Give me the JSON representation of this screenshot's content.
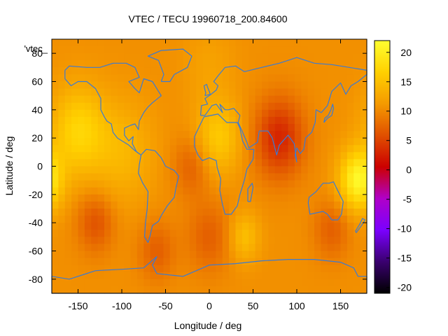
{
  "chart_data": {
    "type": "heatmap",
    "title": "VTEC / TECU 19960718_200.84600",
    "xlabel": "Longitude / deg",
    "ylabel": "Latitude / deg",
    "xlim": [
      -180,
      180
    ],
    "ylim": [
      -90,
      90
    ],
    "x_ticks": [
      -150,
      -100,
      -50,
      0,
      50,
      100,
      150
    ],
    "y_ticks": [
      -80,
      -60,
      -40,
      -20,
      0,
      20,
      40,
      60,
      80
    ],
    "legend": {
      "label": "'vtec_",
      "placement": "top-left"
    },
    "colorbar": {
      "range": [
        -21,
        22
      ],
      "ticks": [
        20,
        15,
        10,
        5,
        0,
        -5,
        -10,
        -15,
        -20
      ],
      "palette": [
        "#000000",
        "#3a006f",
        "#7b00ff",
        "#b000c8",
        "#cc0000",
        "#e05000",
        "#f59a00",
        "#ffd000",
        "#ffff30"
      ]
    },
    "coastline_color": "#3a7bd5",
    "base_value": 10.5,
    "features": [
      {
        "lon": -150,
        "lat": 25,
        "value": 17,
        "spread": 22
      },
      {
        "lon": 170,
        "lat": -10,
        "value": 21,
        "spread": 15
      },
      {
        "lon": 10,
        "lat": 20,
        "value": 16,
        "spread": 18
      },
      {
        "lon": 40,
        "lat": -50,
        "value": 15,
        "spread": 12
      },
      {
        "lon": 80,
        "lat": 20,
        "value": 3,
        "spread": 20
      },
      {
        "lon": -130,
        "lat": -40,
        "value": 6,
        "spread": 15
      },
      {
        "lon": 140,
        "lat": -45,
        "value": 7,
        "spread": 15
      },
      {
        "lon": 0,
        "lat": -50,
        "value": 7,
        "spread": 18
      },
      {
        "lon": -20,
        "lat": 0,
        "value": 7,
        "spread": 15
      },
      {
        "lon": -60,
        "lat": -60,
        "value": 7,
        "spread": 15
      },
      {
        "lon": -100,
        "lat": 10,
        "value": 14,
        "spread": 25
      },
      {
        "lon": 0,
        "lat": 70,
        "value": 12,
        "spread": 20
      }
    ]
  }
}
